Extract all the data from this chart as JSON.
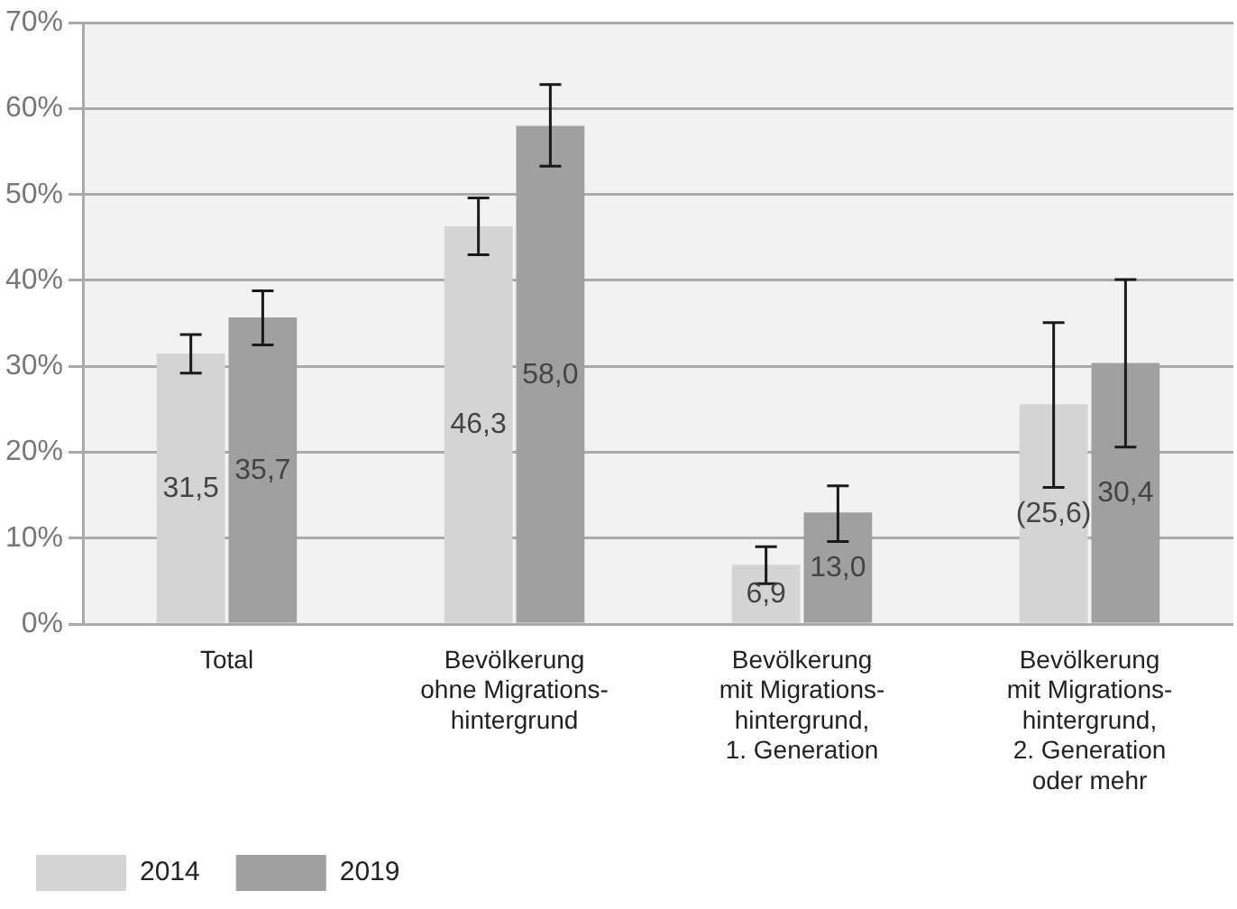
{
  "chart_data": {
    "type": "bar",
    "categories": [
      "Total",
      "Bevölkerung\nohne Migrations-\nhintergrund",
      "Bevölkerung\nmit Migrations-\nhintergrund,\n1. Generation",
      "Bevölkerung\nmit Migrations-\nhintergrund,\n2. Generation\noder mehr"
    ],
    "series": [
      {
        "name": "2014",
        "color": "#d4d4d4",
        "values": [
          31.5,
          46.3,
          6.9,
          25.6
        ],
        "errors": [
          [
            29.2,
            33.7
          ],
          [
            43.0,
            49.6
          ],
          [
            4.7,
            9.0
          ],
          [
            15.9,
            35.1
          ]
        ],
        "value_labels": [
          "31,5",
          "46,3",
          "6,9",
          "(25,6)"
        ]
      },
      {
        "name": "2019",
        "color": "#a0a0a0",
        "values": [
          35.7,
          58.0,
          13.0,
          30.4
        ],
        "errors": [
          [
            32.5,
            38.8
          ],
          [
            53.3,
            62.8
          ],
          [
            9.6,
            16.1
          ],
          [
            20.6,
            40.1
          ]
        ],
        "value_labels": [
          "35,7",
          "58,0",
          "13,0",
          "30,4"
        ]
      }
    ],
    "ylim": [
      0,
      70
    ],
    "yticks": [
      {
        "value": 0,
        "label": "0%"
      },
      {
        "value": 10,
        "label": "10%"
      },
      {
        "value": 20,
        "label": "20%"
      },
      {
        "value": 30,
        "label": "30%"
      },
      {
        "value": 40,
        "label": "40%"
      },
      {
        "value": 50,
        "label": "50%"
      },
      {
        "value": 60,
        "label": "60%"
      },
      {
        "value": 70,
        "label": "70%"
      }
    ],
    "grid": "y",
    "legend": "bottom left"
  }
}
